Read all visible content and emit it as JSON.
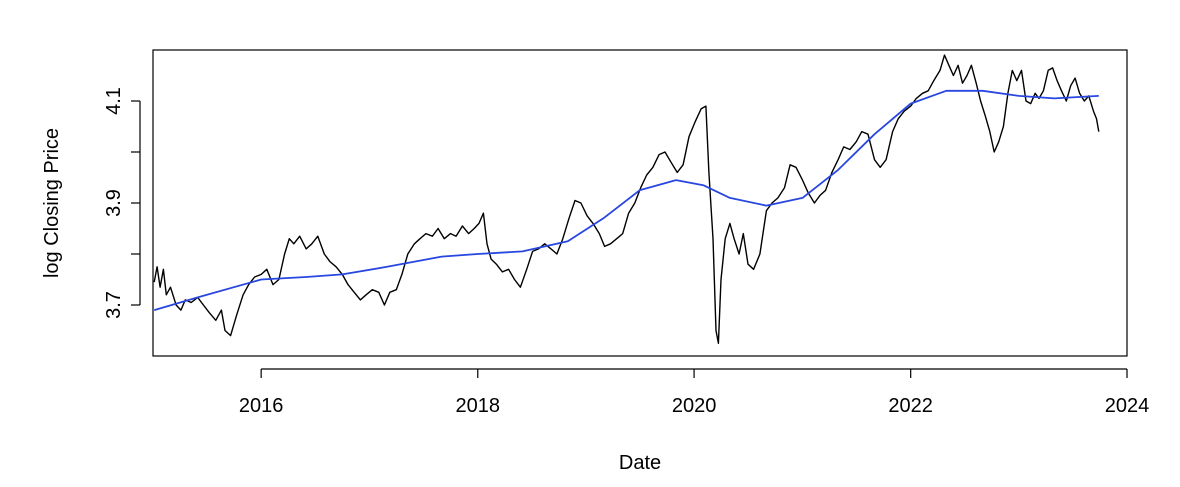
{
  "chart_data": {
    "type": "line",
    "title": "",
    "xlabel": "Date",
    "ylabel": "log Closing Price",
    "xlim": [
      "2015-01-01",
      "2024-01-01"
    ],
    "ylim": [
      3.6,
      4.2
    ],
    "x_ticks": [
      "2016",
      "2018",
      "2020",
      "2022",
      "2024"
    ],
    "y_ticks": [
      "3.7",
      "3.9",
      "4.1"
    ],
    "y_minor_ticks": [
      3.8,
      4.0
    ],
    "grid": false,
    "legend": "none",
    "series": [
      {
        "color": "#000000",
        "points": [
          [
            "2015-01-05",
            3.745
          ],
          [
            "2015-01-15",
            3.775
          ],
          [
            "2015-01-25",
            3.735
          ],
          [
            "2015-02-05",
            3.77
          ],
          [
            "2015-02-15",
            3.72
          ],
          [
            "2015-03-01",
            3.735
          ],
          [
            "2015-03-20",
            3.7
          ],
          [
            "2015-04-05",
            3.69
          ],
          [
            "2015-04-20",
            3.71
          ],
          [
            "2015-05-10",
            3.705
          ],
          [
            "2015-06-01",
            3.715
          ],
          [
            "2015-06-20",
            3.7
          ],
          [
            "2015-07-10",
            3.685
          ],
          [
            "2015-08-01",
            3.67
          ],
          [
            "2015-08-20",
            3.69
          ],
          [
            "2015-09-01",
            3.65
          ],
          [
            "2015-09-20",
            3.64
          ],
          [
            "2015-10-10",
            3.68
          ],
          [
            "2015-11-01",
            3.72
          ],
          [
            "2015-11-20",
            3.74
          ],
          [
            "2015-12-10",
            3.755
          ],
          [
            "2016-01-01",
            3.76
          ],
          [
            "2016-01-20",
            3.77
          ],
          [
            "2016-02-10",
            3.74
          ],
          [
            "2016-03-01",
            3.75
          ],
          [
            "2016-03-20",
            3.8
          ],
          [
            "2016-04-05",
            3.83
          ],
          [
            "2016-04-20",
            3.82
          ],
          [
            "2016-05-10",
            3.835
          ],
          [
            "2016-06-01",
            3.81
          ],
          [
            "2016-06-20",
            3.82
          ],
          [
            "2016-07-10",
            3.835
          ],
          [
            "2016-08-01",
            3.8
          ],
          [
            "2016-08-20",
            3.785
          ],
          [
            "2016-09-10",
            3.775
          ],
          [
            "2016-10-01",
            3.76
          ],
          [
            "2016-10-20",
            3.74
          ],
          [
            "2016-11-10",
            3.725
          ],
          [
            "2016-12-01",
            3.71
          ],
          [
            "2016-12-20",
            3.72
          ],
          [
            "2017-01-10",
            3.73
          ],
          [
            "2017-02-01",
            3.725
          ],
          [
            "2017-02-20",
            3.7
          ],
          [
            "2017-03-10",
            3.725
          ],
          [
            "2017-04-01",
            3.73
          ],
          [
            "2017-04-20",
            3.76
          ],
          [
            "2017-05-10",
            3.8
          ],
          [
            "2017-06-01",
            3.82
          ],
          [
            "2017-06-20",
            3.83
          ],
          [
            "2017-07-10",
            3.84
          ],
          [
            "2017-08-01",
            3.835
          ],
          [
            "2017-08-20",
            3.85
          ],
          [
            "2017-09-10",
            3.83
          ],
          [
            "2017-10-01",
            3.84
          ],
          [
            "2017-10-20",
            3.835
          ],
          [
            "2017-11-10",
            3.855
          ],
          [
            "2017-12-01",
            3.84
          ],
          [
            "2017-12-20",
            3.85
          ],
          [
            "2018-01-05",
            3.86
          ],
          [
            "2018-01-20",
            3.88
          ],
          [
            "2018-02-01",
            3.82
          ],
          [
            "2018-02-15",
            3.79
          ],
          [
            "2018-03-05",
            3.78
          ],
          [
            "2018-03-25",
            3.765
          ],
          [
            "2018-04-15",
            3.77
          ],
          [
            "2018-05-05",
            3.75
          ],
          [
            "2018-05-25",
            3.735
          ],
          [
            "2018-06-15",
            3.77
          ],
          [
            "2018-07-05",
            3.805
          ],
          [
            "2018-07-25",
            3.81
          ],
          [
            "2018-08-15",
            3.82
          ],
          [
            "2018-09-05",
            3.81
          ],
          [
            "2018-09-25",
            3.8
          ],
          [
            "2018-10-15",
            3.83
          ],
          [
            "2018-11-05",
            3.87
          ],
          [
            "2018-11-25",
            3.905
          ],
          [
            "2018-12-15",
            3.9
          ],
          [
            "2019-01-05",
            3.875
          ],
          [
            "2019-01-25",
            3.86
          ],
          [
            "2019-02-15",
            3.84
          ],
          [
            "2019-03-05",
            3.815
          ],
          [
            "2019-03-25",
            3.82
          ],
          [
            "2019-04-15",
            3.83
          ],
          [
            "2019-05-05",
            3.84
          ],
          [
            "2019-05-25",
            3.88
          ],
          [
            "2019-06-15",
            3.9
          ],
          [
            "2019-07-05",
            3.93
          ],
          [
            "2019-07-25",
            3.955
          ],
          [
            "2019-08-15",
            3.97
          ],
          [
            "2019-09-05",
            3.995
          ],
          [
            "2019-09-25",
            4.0
          ],
          [
            "2019-10-15",
            3.98
          ],
          [
            "2019-11-05",
            3.96
          ],
          [
            "2019-11-25",
            3.975
          ],
          [
            "2019-12-15",
            4.03
          ],
          [
            "2020-01-05",
            4.06
          ],
          [
            "2020-01-25",
            4.085
          ],
          [
            "2020-02-10",
            4.09
          ],
          [
            "2020-02-20",
            3.96
          ],
          [
            "2020-03-05",
            3.83
          ],
          [
            "2020-03-15",
            3.65
          ],
          [
            "2020-03-23",
            3.625
          ],
          [
            "2020-04-01",
            3.75
          ],
          [
            "2020-04-15",
            3.83
          ],
          [
            "2020-05-01",
            3.86
          ],
          [
            "2020-05-15",
            3.83
          ],
          [
            "2020-06-01",
            3.8
          ],
          [
            "2020-06-15",
            3.84
          ],
          [
            "2020-07-01",
            3.78
          ],
          [
            "2020-07-20",
            3.77
          ],
          [
            "2020-08-10",
            3.8
          ],
          [
            "2020-09-01",
            3.885
          ],
          [
            "2020-09-20",
            3.9
          ],
          [
            "2020-10-10",
            3.91
          ],
          [
            "2020-11-01",
            3.93
          ],
          [
            "2020-11-20",
            3.975
          ],
          [
            "2020-12-10",
            3.97
          ],
          [
            "2021-01-01",
            3.945
          ],
          [
            "2021-01-20",
            3.92
          ],
          [
            "2021-02-10",
            3.9
          ],
          [
            "2021-03-01",
            3.915
          ],
          [
            "2021-03-20",
            3.925
          ],
          [
            "2021-04-10",
            3.96
          ],
          [
            "2021-05-01",
            3.985
          ],
          [
            "2021-05-20",
            4.01
          ],
          [
            "2021-06-10",
            4.005
          ],
          [
            "2021-07-01",
            4.02
          ],
          [
            "2021-07-20",
            4.04
          ],
          [
            "2021-08-10",
            4.035
          ],
          [
            "2021-09-01",
            3.985
          ],
          [
            "2021-09-20",
            3.97
          ],
          [
            "2021-10-10",
            3.985
          ],
          [
            "2021-11-01",
            4.04
          ],
          [
            "2021-11-20",
            4.065
          ],
          [
            "2021-12-10",
            4.08
          ],
          [
            "2022-01-01",
            4.09
          ],
          [
            "2022-01-20",
            4.105
          ],
          [
            "2022-02-10",
            4.115
          ],
          [
            "2022-03-01",
            4.12
          ],
          [
            "2022-03-20",
            4.14
          ],
          [
            "2022-04-10",
            4.16
          ],
          [
            "2022-04-25",
            4.19
          ],
          [
            "2022-05-10",
            4.17
          ],
          [
            "2022-05-25",
            4.15
          ],
          [
            "2022-06-10",
            4.17
          ],
          [
            "2022-06-25",
            4.135
          ],
          [
            "2022-07-10",
            4.15
          ],
          [
            "2022-07-25",
            4.17
          ],
          [
            "2022-08-10",
            4.135
          ],
          [
            "2022-08-25",
            4.1
          ],
          [
            "2022-09-10",
            4.07
          ],
          [
            "2022-09-25",
            4.04
          ],
          [
            "2022-10-10",
            4.0
          ],
          [
            "2022-10-25",
            4.02
          ],
          [
            "2022-11-10",
            4.05
          ],
          [
            "2022-11-25",
            4.115
          ],
          [
            "2022-12-10",
            4.16
          ],
          [
            "2022-12-25",
            4.14
          ],
          [
            "2023-01-10",
            4.16
          ],
          [
            "2023-01-25",
            4.1
          ],
          [
            "2023-02-10",
            4.095
          ],
          [
            "2023-02-25",
            4.115
          ],
          [
            "2023-03-10",
            4.105
          ],
          [
            "2023-03-25",
            4.12
          ],
          [
            "2023-04-10",
            4.16
          ],
          [
            "2023-04-25",
            4.165
          ],
          [
            "2023-05-10",
            4.14
          ],
          [
            "2023-05-25",
            4.12
          ],
          [
            "2023-06-10",
            4.1
          ],
          [
            "2023-06-25",
            4.13
          ],
          [
            "2023-07-10",
            4.145
          ],
          [
            "2023-07-25",
            4.115
          ],
          [
            "2023-08-10",
            4.1
          ],
          [
            "2023-08-25",
            4.11
          ],
          [
            "2023-09-10",
            4.08
          ],
          [
            "2023-09-20",
            4.065
          ],
          [
            "2023-09-28",
            4.04
          ]
        ]
      },
      {
        "color": "#2846e0",
        "points": [
          [
            "2015-01-05",
            3.69
          ],
          [
            "2015-06-01",
            3.715
          ],
          [
            "2016-01-01",
            3.75
          ],
          [
            "2016-06-01",
            3.755
          ],
          [
            "2016-10-01",
            3.76
          ],
          [
            "2017-03-01",
            3.775
          ],
          [
            "2017-09-01",
            3.795
          ],
          [
            "2018-01-01",
            3.8
          ],
          [
            "2018-06-01",
            3.805
          ],
          [
            "2018-11-01",
            3.825
          ],
          [
            "2019-03-01",
            3.87
          ],
          [
            "2019-07-01",
            3.925
          ],
          [
            "2019-11-01",
            3.945
          ],
          [
            "2020-02-01",
            3.935
          ],
          [
            "2020-05-01",
            3.91
          ],
          [
            "2020-09-01",
            3.895
          ],
          [
            "2021-01-01",
            3.91
          ],
          [
            "2021-05-01",
            3.965
          ],
          [
            "2021-09-01",
            4.035
          ],
          [
            "2022-01-01",
            4.095
          ],
          [
            "2022-05-01",
            4.12
          ],
          [
            "2022-09-01",
            4.12
          ],
          [
            "2023-01-01",
            4.11
          ],
          [
            "2023-05-01",
            4.105
          ],
          [
            "2023-09-28",
            4.11
          ]
        ]
      }
    ]
  }
}
